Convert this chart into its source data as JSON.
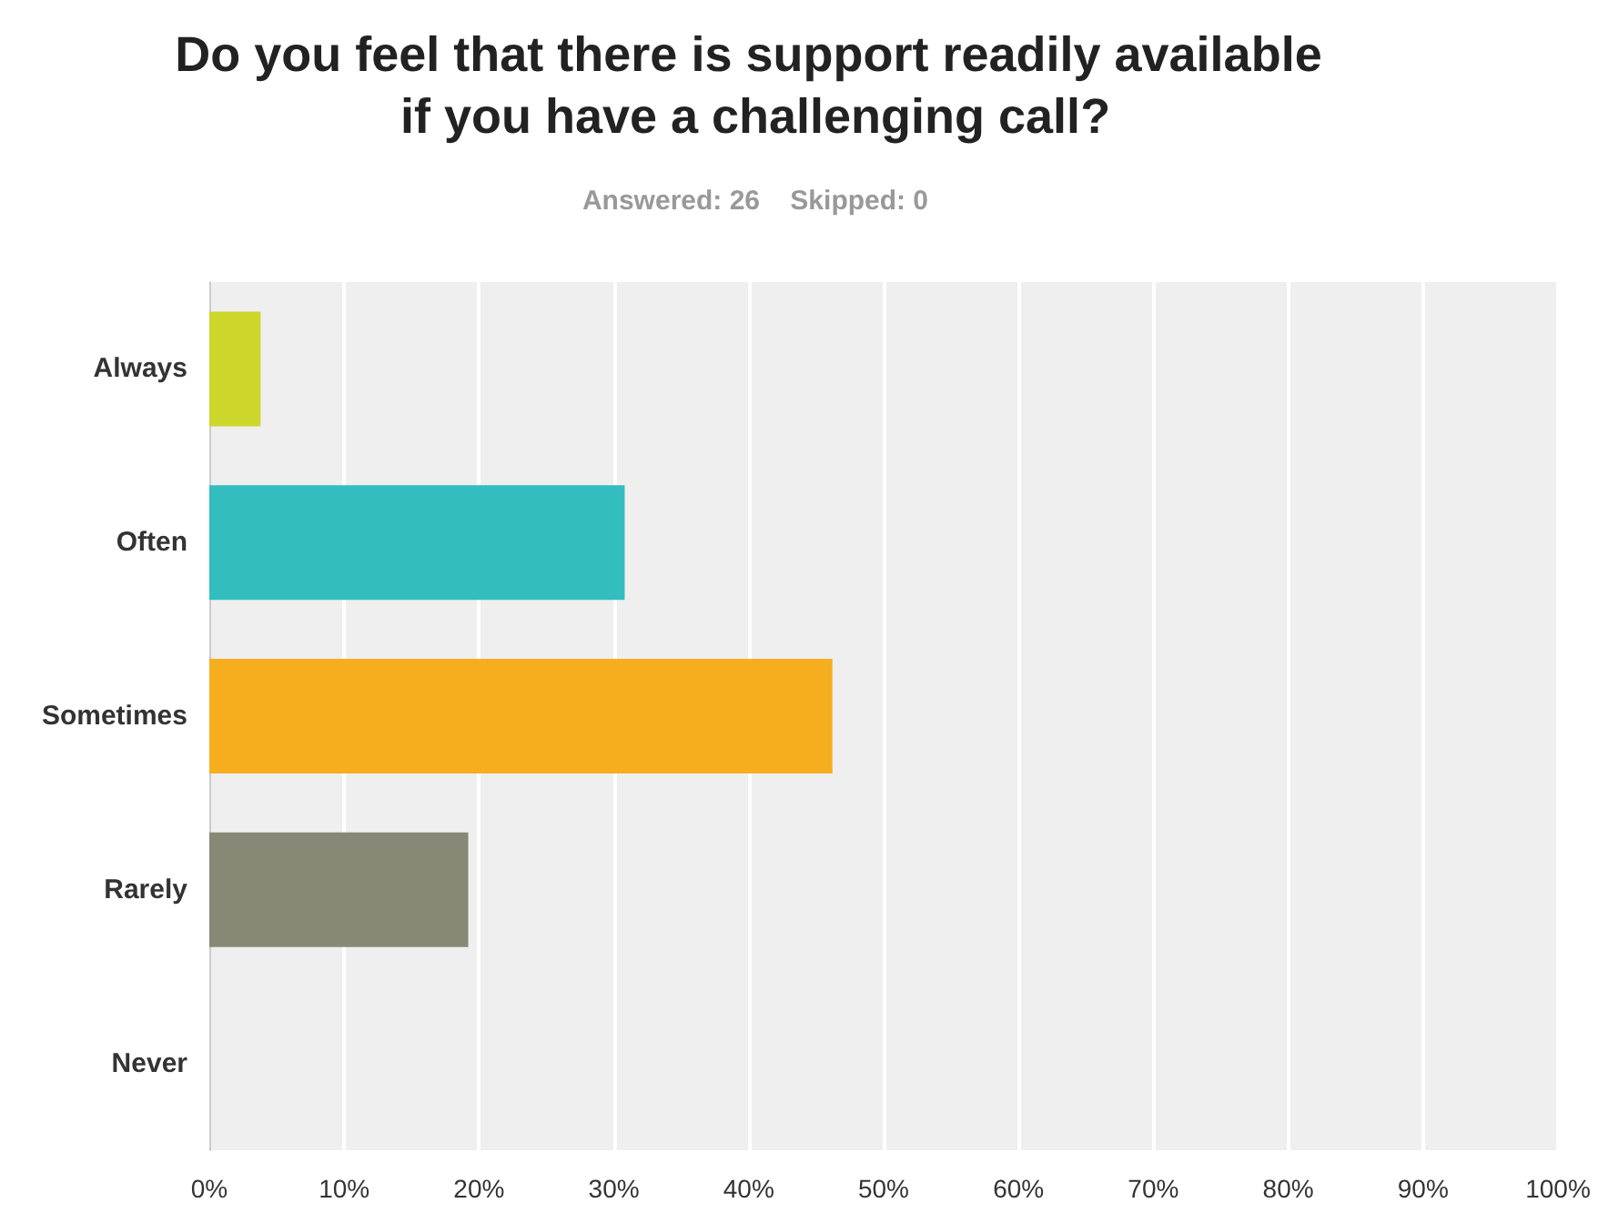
{
  "chart_data": {
    "type": "bar",
    "orientation": "horizontal",
    "title": "Do you feel that there is support readily available if you have a challenging call?",
    "subtitle": "Answered: 26    Skipped: 0",
    "categories": [
      "Always",
      "Often",
      "Sometimes",
      "Rarely",
      "Never"
    ],
    "values": [
      3.8,
      30.8,
      46.2,
      19.2,
      0
    ],
    "colors": [
      "#cdd62b",
      "#33bdbf",
      "#f6ae1f",
      "#888877",
      "#a0a0a0"
    ],
    "xlim": [
      0,
      100
    ],
    "xticks": [
      {
        "value": 0,
        "label": "0%"
      },
      {
        "value": 10,
        "label": "10%"
      },
      {
        "value": 20,
        "label": "20%"
      },
      {
        "value": 30,
        "label": "30%"
      },
      {
        "value": 40,
        "label": "40%"
      },
      {
        "value": 50,
        "label": "50%"
      },
      {
        "value": 60,
        "label": "60%"
      },
      {
        "value": 70,
        "label": "70%"
      },
      {
        "value": 80,
        "label": "80%"
      },
      {
        "value": 90,
        "label": "90%"
      },
      {
        "value": 100,
        "label": "100%"
      }
    ],
    "grid": "x"
  }
}
